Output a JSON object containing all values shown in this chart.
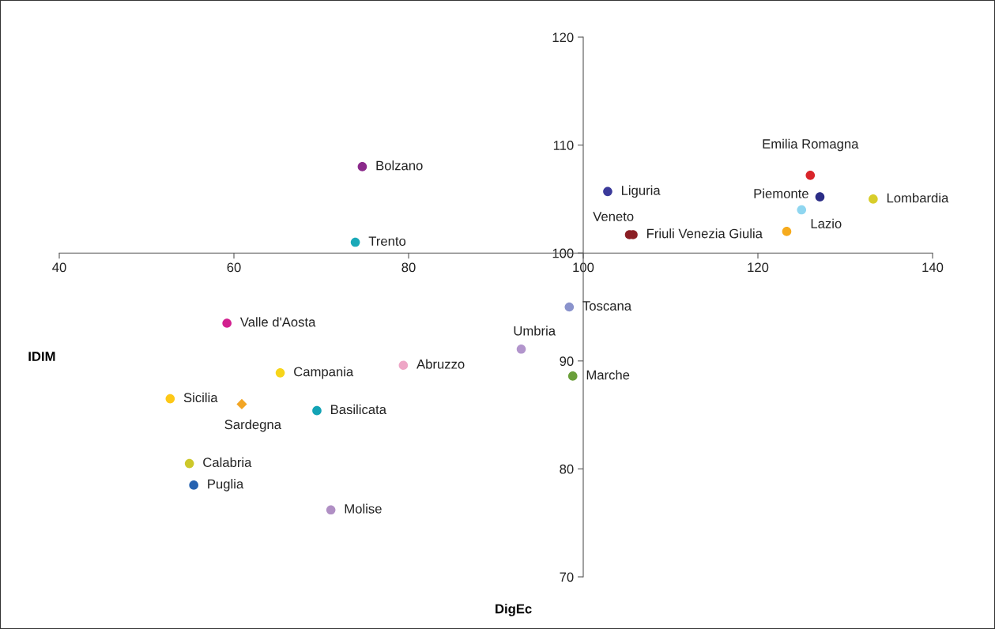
{
  "chart_data": {
    "type": "scatter",
    "xlabel": "DigEc",
    "ylabel": "IDIM",
    "xlim": [
      40,
      140
    ],
    "ylim": [
      70,
      120
    ],
    "xticks": [
      40,
      60,
      80,
      100,
      120,
      140
    ],
    "yticks": [
      70,
      80,
      90,
      100,
      110,
      120
    ],
    "marker": "circle",
    "series": [
      {
        "name": "Bolzano",
        "color": "#8b2a8b",
        "x": [
          74.7
        ],
        "values": [
          108.0
        ]
      },
      {
        "name": "Trento",
        "color": "#1aa9b8",
        "x": [
          73.9
        ],
        "values": [
          101.0
        ]
      },
      {
        "name": "Liguria",
        "color": "#3b3a9a",
        "x": [
          102.8
        ],
        "values": [
          105.7
        ]
      },
      {
        "name": "Emilia Romagna",
        "color": "#d9252b",
        "x": [
          126.0
        ],
        "values": [
          107.2
        ]
      },
      {
        "name": "Piemonte",
        "color": "#2b2d86",
        "x": [
          127.1
        ],
        "values": [
          105.2
        ]
      },
      {
        "name": "Lombardia",
        "color": "#d8cd2a",
        "x": [
          133.2
        ],
        "values": [
          105.0
        ]
      },
      {
        "name": "Lazio",
        "color": "#8fd6f0",
        "x": [
          125.0
        ],
        "values": [
          104.0
        ]
      },
      {
        "name": "Veneto",
        "color": "#8b1f24",
        "x": [
          105.3
        ],
        "values": [
          101.7
        ]
      },
      {
        "name": "Friuli Venezia Giulia",
        "color": "#8b1f24",
        "x": [
          105.7
        ],
        "values": [
          101.7
        ]
      },
      {
        "color": "#f6ab1d",
        "x": [
          123.3
        ],
        "values": [
          102.0
        ]
      },
      {
        "name": "Toscana",
        "color": "#8a93cc",
        "x": [
          98.4
        ],
        "values": [
          95.0
        ]
      },
      {
        "name": "Valle d'Aosta",
        "color": "#d2208f",
        "x": [
          59.2
        ],
        "values": [
          93.5
        ]
      },
      {
        "name": "Umbria",
        "color": "#b295cc",
        "x": [
          92.9
        ],
        "values": [
          91.1
        ]
      },
      {
        "name": "Abruzzo",
        "color": "#eea6c6",
        "x": [
          79.4
        ],
        "values": [
          89.6
        ]
      },
      {
        "name": "Campania",
        "color": "#f7d51a",
        "x": [
          65.3
        ],
        "values": [
          88.9
        ]
      },
      {
        "name": "Marche",
        "color": "#6a9f3a",
        "x": [
          98.8
        ],
        "values": [
          88.6
        ]
      },
      {
        "name": "Sicilia",
        "color": "#fdc817",
        "x": [
          52.7
        ],
        "values": [
          86.5
        ]
      },
      {
        "name": "Sardegna",
        "color": "#f2a524",
        "x": [
          60.9
        ],
        "values": [
          86.0
        ],
        "marker": "diamond"
      },
      {
        "name": "Basilicata",
        "color": "#13a3b5",
        "x": [
          69.5
        ],
        "values": [
          85.4
        ]
      },
      {
        "name": "Calabria",
        "color": "#cdc82a",
        "x": [
          54.9
        ],
        "values": [
          80.5
        ]
      },
      {
        "name": "Puglia",
        "color": "#2662b0",
        "x": [
          55.4
        ],
        "values": [
          78.5
        ]
      },
      {
        "name": "Molise",
        "color": "#b08fc4",
        "x": [
          71.1
        ],
        "values": [
          76.2
        ]
      }
    ]
  }
}
